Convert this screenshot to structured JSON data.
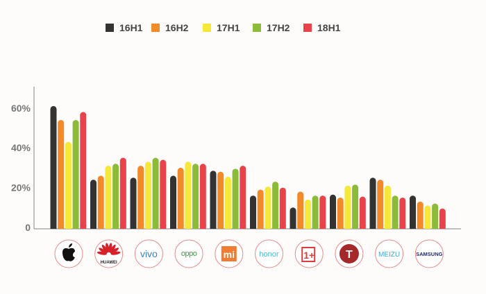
{
  "chart_data": {
    "type": "bar",
    "title": "",
    "xlabel": "",
    "ylabel": "",
    "ylim": [
      0,
      70
    ],
    "yticks": [
      0,
      20,
      40,
      60
    ],
    "ytick_labels": [
      "0",
      "20%",
      "40%",
      "60%"
    ],
    "legend_position": "top-center",
    "categories": [
      "Apple",
      "HUAWEI",
      "vivo",
      "OPPO",
      "Mi",
      "honor",
      "OnePlus",
      "Smartisan",
      "MEIZU",
      "SAMSUNG"
    ],
    "series": [
      {
        "name": "16H1",
        "color": "#333333",
        "values": [
          61,
          24,
          25,
          26,
          28.5,
          16,
          10,
          16.5,
          25,
          16
        ]
      },
      {
        "name": "16H2",
        "color": "#f28a2a",
        "values": [
          54,
          26,
          31,
          30,
          28,
          19,
          18,
          15,
          24,
          13
        ]
      },
      {
        "name": "17H1",
        "color": "#f5e83a",
        "values": [
          43,
          31,
          33,
          33,
          25.5,
          20.5,
          14,
          21,
          21,
          11
        ]
      },
      {
        "name": "17H2",
        "color": "#8cbb3a",
        "values": [
          54,
          32,
          35,
          32,
          29.5,
          23,
          16,
          21.5,
          16,
          12
        ]
      },
      {
        "name": "18H1",
        "color": "#e8434a",
        "values": [
          58,
          35,
          34,
          32,
          31,
          20,
          16,
          15.5,
          15,
          9.5
        ]
      }
    ]
  },
  "logos": [
    {
      "brand": "Apple",
      "text": "",
      "icon": "apple-icon"
    },
    {
      "brand": "HUAWEI",
      "text": "HUAWEI",
      "icon": "huawei-logo"
    },
    {
      "brand": "vivo",
      "text": "vivo",
      "icon": "vivo-logo"
    },
    {
      "brand": "OPPO",
      "text": "oppo",
      "icon": "oppo-logo"
    },
    {
      "brand": "Mi",
      "text": "mi",
      "icon": "xiaomi-logo"
    },
    {
      "brand": "honor",
      "text": "honor",
      "icon": "honor-logo"
    },
    {
      "brand": "OnePlus",
      "text": "1+",
      "icon": "oneplus-logo"
    },
    {
      "brand": "Smartisan",
      "text": "T",
      "icon": "smartisan-logo"
    },
    {
      "brand": "MEIZU",
      "text": "MEIZU",
      "icon": "meizu-logo"
    },
    {
      "brand": "SAMSUNG",
      "text": "SAMSUNG",
      "icon": "samsung-logo"
    }
  ]
}
